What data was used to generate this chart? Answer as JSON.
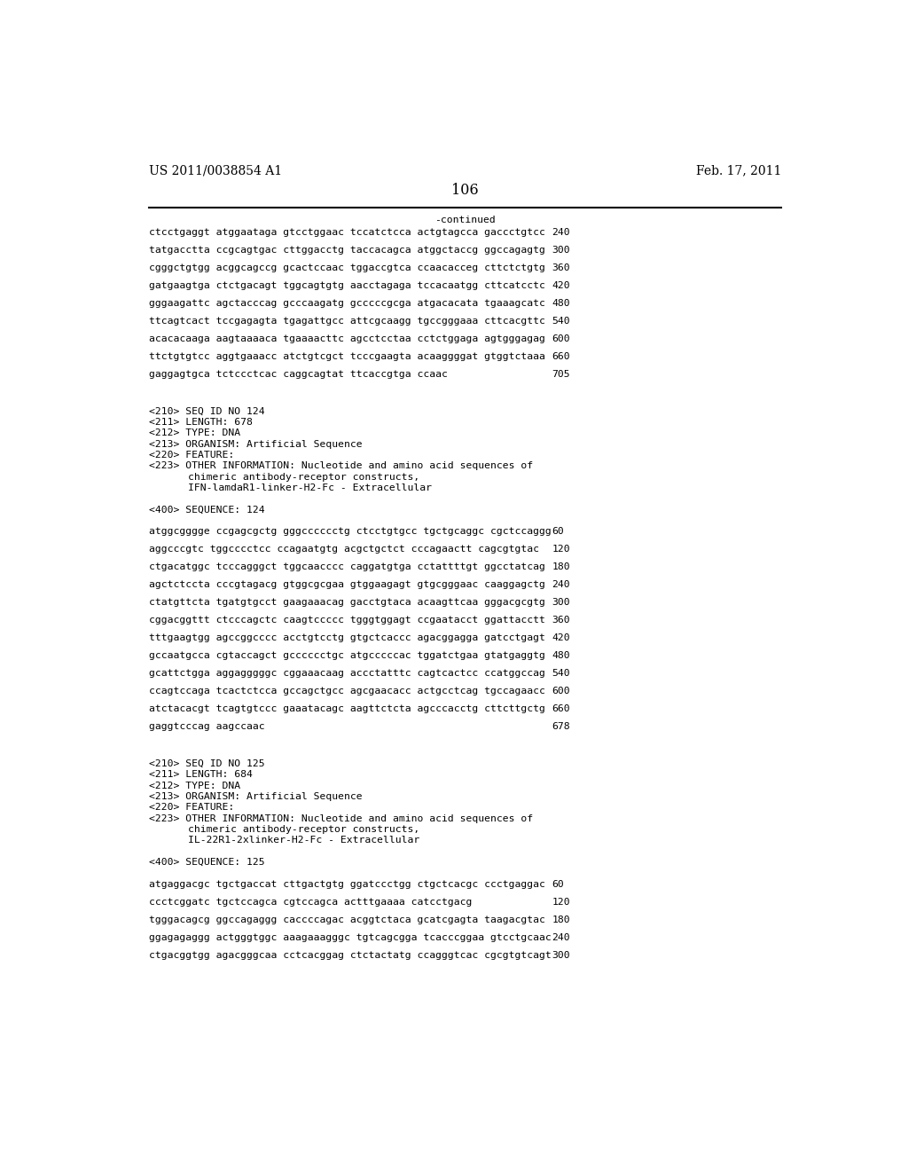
{
  "header_left": "US 2011/0038854 A1",
  "header_right": "Feb. 17, 2011",
  "page_number": "106",
  "continued_label": "-continued",
  "background_color": "#ffffff",
  "text_color": "#000000",
  "font_size_header": 10.0,
  "font_size_page": 11.5,
  "mono_fs": 8.2,
  "meta_fs": 8.2,
  "content_blocks": [
    {
      "type": "sequence_line",
      "text": "ctcctgaggt atggaataga gtcctggaac tccatctcca actgtagcca gaccctgtcc",
      "num": "240"
    },
    {
      "type": "sequence_line",
      "text": "tatgacctta ccgcagtgac cttggacctg taccacagca atggctaccg ggccagagtg",
      "num": "300"
    },
    {
      "type": "sequence_line",
      "text": "cgggctgtgg acggcagccg gcactccaac tggaccgtca ccaacacceg cttctctgtg",
      "num": "360"
    },
    {
      "type": "sequence_line",
      "text": "gatgaagtga ctctgacagt tggcagtgtg aacctagaga tccacaatgg cttcatcctc",
      "num": "420"
    },
    {
      "type": "sequence_line",
      "text": "gggaagattc agctacccag gcccaagatg gcccccgcga atgacacata tgaaagcatc",
      "num": "480"
    },
    {
      "type": "sequence_line",
      "text": "ttcagtcact tccgagagta tgagattgcc attcgcaagg tgccgggaaa cttcacgttc",
      "num": "540"
    },
    {
      "type": "sequence_line",
      "text": "acacacaaga aagtaaaaca tgaaaacttc agcctcctaa cctctggaga agtgggagag",
      "num": "600"
    },
    {
      "type": "sequence_line",
      "text": "ttctgtgtcc aggtgaaacc atctgtcgct tcccgaagta acaaggggat gtggtctaaa",
      "num": "660"
    },
    {
      "type": "sequence_line",
      "text": "gaggagtgca tctccctcac caggcagtat ttcaccgtga ccaac",
      "num": "705"
    },
    {
      "type": "blank2"
    },
    {
      "type": "meta",
      "text": "<210> SEQ ID NO 124"
    },
    {
      "type": "meta",
      "text": "<211> LENGTH: 678"
    },
    {
      "type": "meta",
      "text": "<212> TYPE: DNA"
    },
    {
      "type": "meta",
      "text": "<213> ORGANISM: Artificial Sequence"
    },
    {
      "type": "meta",
      "text": "<220> FEATURE:"
    },
    {
      "type": "meta",
      "text": "<223> OTHER INFORMATION: Nucleotide and amino acid sequences of"
    },
    {
      "type": "meta_indent",
      "text": "chimeric antibody-receptor constructs,"
    },
    {
      "type": "meta_indent",
      "text": "IFN-lamdaR1-linker-H2-Fc - Extracellular"
    },
    {
      "type": "blank1"
    },
    {
      "type": "meta",
      "text": "<400> SEQUENCE: 124"
    },
    {
      "type": "blank1"
    },
    {
      "type": "sequence_line",
      "text": "atggcgggge ccgagcgctg gggcccccctg ctcctgtgcc tgctgcaggc cgctccaggg",
      "num": "60"
    },
    {
      "type": "sequence_line",
      "text": "aggcccgtc tggcccctcc ccagaatgtg acgctgctct cccagaactt cagcgtgtac",
      "num": "120"
    },
    {
      "type": "sequence_line",
      "text": "ctgacatggc tcccagggct tggcaacccc caggatgtga cctattttgt ggcctatcag",
      "num": "180"
    },
    {
      "type": "sequence_line",
      "text": "agctctccta cccgtagacg gtggcgcgaa gtggaagagt gtgcgggaac caaggagctg",
      "num": "240"
    },
    {
      "type": "sequence_line",
      "text": "ctatgttcta tgatgtgcct gaagaaacag gacctgtaca acaagttcaa gggacgcgtg",
      "num": "300"
    },
    {
      "type": "sequence_line",
      "text": "cggacggttt ctcccagctc caagtccccc tgggtggagt ccgaatacct ggattacctt",
      "num": "360"
    },
    {
      "type": "sequence_line",
      "text": "tttgaagtgg agccggcccc acctgtcctg gtgctcaccc agacggagga gatcctgagt",
      "num": "420"
    },
    {
      "type": "sequence_line",
      "text": "gccaatgcca cgtaccagct gcccccctgc atgcccccac tggatctgaa gtatgaggtg",
      "num": "480"
    },
    {
      "type": "sequence_line",
      "text": "gcattctgga aggagggggc cggaaacaag accctatttc cagtcactcc ccatggccag",
      "num": "540"
    },
    {
      "type": "sequence_line",
      "text": "ccagtccaga tcactctcca gccagctgcc agcgaacacc actgcctcag tgccagaacc",
      "num": "600"
    },
    {
      "type": "sequence_line",
      "text": "atctacacgt tcagtgtccc gaaatacagc aagttctcta agcccacctg cttcttgctg",
      "num": "660"
    },
    {
      "type": "sequence_line",
      "text": "gaggtcccag aagccaac",
      "num": "678"
    },
    {
      "type": "blank2"
    },
    {
      "type": "meta",
      "text": "<210> SEQ ID NO 125"
    },
    {
      "type": "meta",
      "text": "<211> LENGTH: 684"
    },
    {
      "type": "meta",
      "text": "<212> TYPE: DNA"
    },
    {
      "type": "meta",
      "text": "<213> ORGANISM: Artificial Sequence"
    },
    {
      "type": "meta",
      "text": "<220> FEATURE:"
    },
    {
      "type": "meta",
      "text": "<223> OTHER INFORMATION: Nucleotide and amino acid sequences of"
    },
    {
      "type": "meta_indent",
      "text": "chimeric antibody-receptor constructs,"
    },
    {
      "type": "meta_indent",
      "text": "IL-22R1-2xlinker-H2-Fc - Extracellular"
    },
    {
      "type": "blank1"
    },
    {
      "type": "meta",
      "text": "<400> SEQUENCE: 125"
    },
    {
      "type": "blank1"
    },
    {
      "type": "sequence_line",
      "text": "atgaggacgc tgctgaccat cttgactgtg ggatccctgg ctgctcacgc ccctgaggac",
      "num": "60"
    },
    {
      "type": "sequence_line",
      "text": "ccctcggatc tgctccagca cgtccagca actttgaaaa catcctgacg",
      "num": "120"
    },
    {
      "type": "sequence_line",
      "text": "tgggacagcg ggccagaggg caccccagac acggtctaca gcatcgagta taagacgtac",
      "num": "180"
    },
    {
      "type": "sequence_line",
      "text": "ggagagaggg actgggtggc aaagaaagggc tgtcagcgga tcacccggaa gtcctgcaac",
      "num": "240"
    },
    {
      "type": "sequence_line",
      "text": "ctgacggtgg agacgggcaa cctcacggag ctctactatg ccagggtcac cgcgtgtcagt",
      "num": "300"
    }
  ]
}
